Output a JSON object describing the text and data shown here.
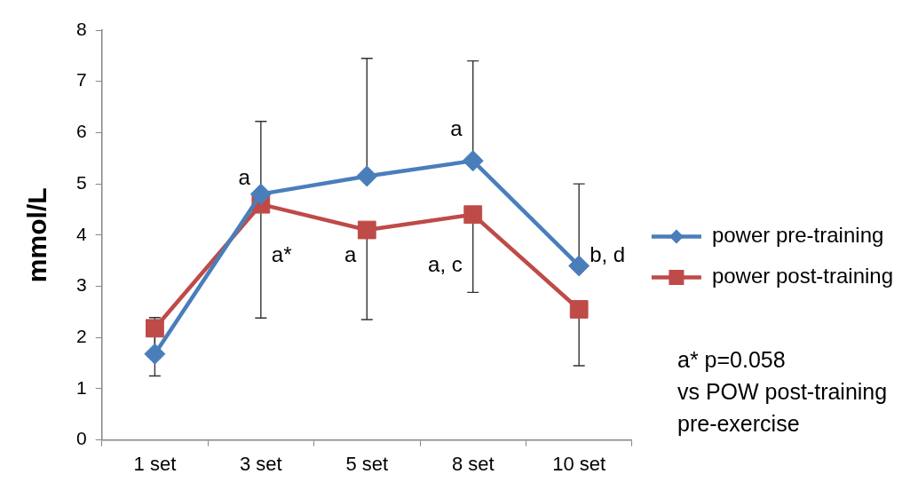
{
  "chart_data": {
    "type": "line",
    "categories": [
      "1 set",
      "3 set",
      "5 set",
      "8 set",
      "10 set"
    ],
    "series": [
      {
        "name": "power pre-training",
        "color": "#4a7ebb",
        "marker": "diamond",
        "values": [
          1.68,
          4.8,
          5.15,
          5.45,
          3.4
        ],
        "errors": [
          [
            1.68,
            2.39
          ],
          [
            4.8,
            6.22
          ],
          [
            5.15,
            7.45
          ],
          [
            5.45,
            7.4
          ],
          [
            3.4,
            5.0
          ]
        ]
      },
      {
        "name": "power post-training",
        "color": "#be4b48",
        "marker": "square",
        "values": [
          2.18,
          4.6,
          4.1,
          4.4,
          2.55
        ],
        "errors": [
          [
            1.25,
            2.18
          ],
          [
            2.38,
            4.6
          ],
          [
            2.35,
            4.1
          ],
          [
            2.88,
            4.4
          ],
          [
            1.45,
            2.55
          ]
        ]
      }
    ],
    "ylabel": "mmol/L",
    "ylim": [
      0,
      8
    ],
    "yticks": [
      0,
      1,
      2,
      3,
      4,
      5,
      6,
      7,
      8
    ],
    "grid": false,
    "legend": "right",
    "line_style": "solid",
    "annotations": [
      {
        "text": "a",
        "x": "3 set",
        "y": 5.1
      },
      {
        "text": "a*",
        "x": "3 set",
        "y": 3.6
      },
      {
        "text": "a",
        "x": "5 set",
        "y": 3.6
      },
      {
        "text": "a",
        "x": "8 set",
        "y": 6.05
      },
      {
        "text": "a, c",
        "x": "8 set",
        "y": 3.4
      },
      {
        "text": "b, d",
        "x": "10 set",
        "y": 3.6
      },
      "a* p=0.058\nvs POW post-training\npre-exercise"
    ]
  }
}
